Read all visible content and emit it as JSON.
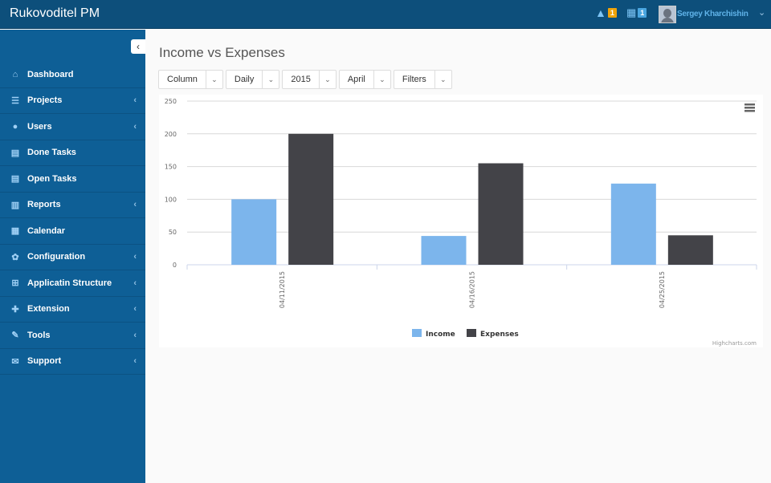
{
  "app": {
    "title": "Rukovoditel PM"
  },
  "header": {
    "alerts_count": "1",
    "calendar_count": "1",
    "user_name": "Sergey Kharchishin"
  },
  "sidebar": {
    "items": [
      {
        "label": "Dashboard",
        "icon": "home-icon",
        "sub": false
      },
      {
        "label": "Projects",
        "icon": "list-icon",
        "sub": true
      },
      {
        "label": "Users",
        "icon": "user-icon",
        "sub": true
      },
      {
        "label": "Done Tasks",
        "icon": "table-icon",
        "sub": false
      },
      {
        "label": "Open Tasks",
        "icon": "table-icon",
        "sub": false
      },
      {
        "label": "Reports",
        "icon": "bar-chart-icon",
        "sub": true
      },
      {
        "label": "Calendar",
        "icon": "calendar-icon",
        "sub": false
      },
      {
        "label": "Configuration",
        "icon": "gear-icon",
        "sub": true
      },
      {
        "label": "Applicatin Structure",
        "icon": "sitemap-icon",
        "sub": true
      },
      {
        "label": "Extension",
        "icon": "puzzle-icon",
        "sub": true
      },
      {
        "label": "Tools",
        "icon": "wrench-icon",
        "sub": true
      },
      {
        "label": "Support",
        "icon": "envelope-icon",
        "sub": true
      }
    ]
  },
  "main": {
    "title": "Income vs Expenses",
    "filters": [
      "Column",
      "Daily",
      "2015",
      "April",
      "Filters"
    ]
  },
  "chart_data": {
    "type": "bar",
    "categories": [
      "04/11/2015",
      "04/16/2015",
      "04/25/2015"
    ],
    "series": [
      {
        "name": "Income",
        "color": "#7cb5ec",
        "values": [
          100,
          44,
          124
        ]
      },
      {
        "name": "Expenses",
        "color": "#434348",
        "values": [
          200,
          155,
          45
        ]
      }
    ],
    "yticks": [
      "0",
      "50",
      "100",
      "150",
      "200",
      "250"
    ],
    "ylim": [
      0,
      250
    ],
    "legend": "bottom-center",
    "credits": "Highcharts.com"
  }
}
